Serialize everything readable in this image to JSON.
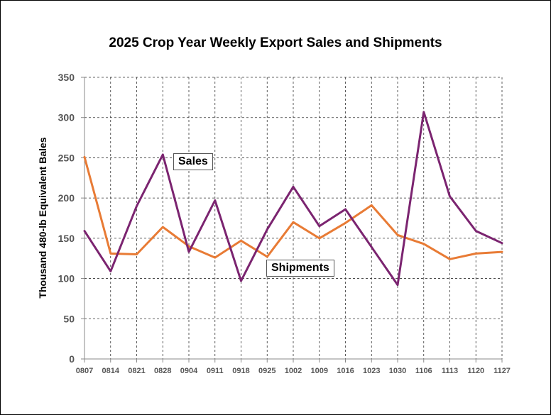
{
  "chart_data": {
    "type": "line",
    "title": "2025 Crop Year Weekly Export Sales and Shipments",
    "xlabel": "",
    "ylabel": "Thousand 480-lb Equivalent Bales",
    "categories": [
      "0807",
      "0814",
      "0821",
      "0828",
      "0904",
      "0911",
      "0918",
      "0925",
      "1002",
      "1009",
      "1016",
      "1023",
      "1030",
      "1106",
      "1113",
      "1120",
      "1127"
    ],
    "ylim": [
      0,
      350
    ],
    "yticks": [
      0,
      50,
      100,
      150,
      200,
      250,
      300,
      350
    ],
    "grid": true,
    "series": [
      {
        "name": "Sales",
        "color": "#7b2470",
        "values": [
          159,
          109,
          190,
          254,
          133,
          197,
          97,
          161,
          214,
          165,
          186,
          139,
          92,
          307,
          202,
          159,
          144
        ]
      },
      {
        "name": "Shipments",
        "color": "#e87b35",
        "values": [
          251,
          131,
          130,
          164,
          140,
          126,
          147,
          127,
          170,
          150,
          169,
          191,
          154,
          143,
          124,
          131,
          133
        ]
      }
    ],
    "annotations": [
      {
        "text": "Sales",
        "series": "Sales"
      },
      {
        "text": "Shipments",
        "series": "Shipments"
      }
    ]
  }
}
